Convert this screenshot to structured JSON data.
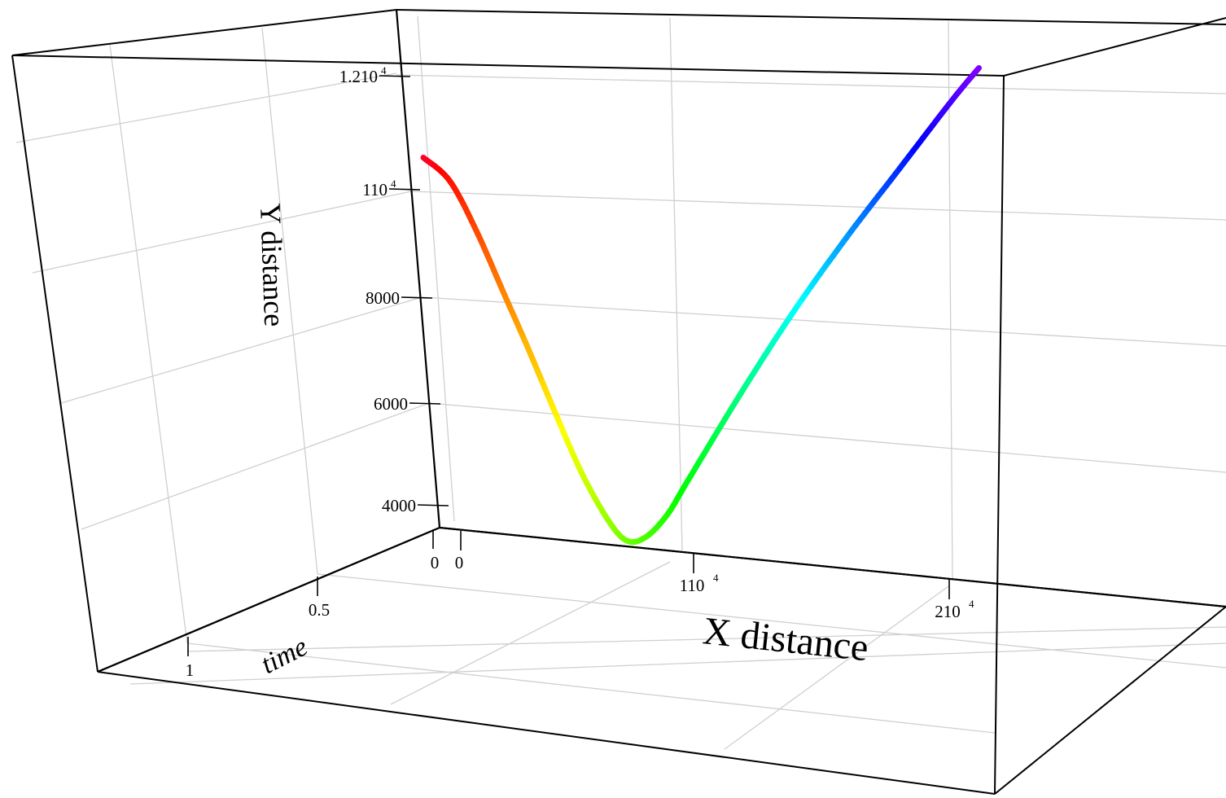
{
  "chart_data": {
    "type": "line",
    "subtype": "3d-trajectory",
    "title": "",
    "x_axis": {
      "label": "X distance",
      "ticks": [
        {
          "value": 0,
          "label": "0"
        },
        {
          "value": 10000,
          "label": "1",
          "suffix": "10",
          "exp": "4"
        },
        {
          "value": 20000,
          "label": "2",
          "suffix": "10",
          "exp": "4"
        }
      ]
    },
    "y_axis": {
      "label": "Y distance",
      "ticks": [
        {
          "value": 4000,
          "label": "4000"
        },
        {
          "value": 6000,
          "label": "6000"
        },
        {
          "value": 8000,
          "label": "8000"
        },
        {
          "value": 10000,
          "label": "1",
          "suffix": "10",
          "exp": "4"
        },
        {
          "value": 12000,
          "label": "1.2",
          "suffix": "10",
          "exp": "4"
        }
      ]
    },
    "z_axis": {
      "label": "time",
      "ticks": [
        {
          "value": 0,
          "label": "0"
        },
        {
          "value": 0.5,
          "label": "0.5"
        },
        {
          "value": 1,
          "label": "1"
        }
      ]
    },
    "colormap": "rainbow by x (red at start to violet at end)",
    "grid": true,
    "series": [
      {
        "points": [
          {
            "x": 0,
            "y": 10000
          },
          {
            "x": 1000,
            "y": 9600
          },
          {
            "x": 2000,
            "y": 8700
          },
          {
            "x": 3000,
            "y": 7600
          },
          {
            "x": 4000,
            "y": 6500
          },
          {
            "x": 5000,
            "y": 5350
          },
          {
            "x": 6000,
            "y": 4250
          },
          {
            "x": 7000,
            "y": 3400
          },
          {
            "x": 7700,
            "y": 3050
          },
          {
            "x": 8400,
            "y": 3150
          },
          {
            "x": 9200,
            "y": 3600
          },
          {
            "x": 10000,
            "y": 4300
          },
          {
            "x": 12000,
            "y": 6050
          },
          {
            "x": 14000,
            "y": 7700
          },
          {
            "x": 16000,
            "y": 9200
          },
          {
            "x": 18000,
            "y": 10600
          },
          {
            "x": 20000,
            "y": 12000
          },
          {
            "x": 21000,
            "y": 12650
          }
        ]
      }
    ]
  }
}
